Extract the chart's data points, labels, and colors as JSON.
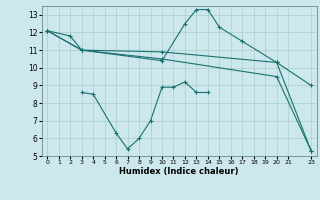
{
  "background_color": "#cce8ec",
  "grid_color": "#aacccc",
  "line_color": "#1a7070",
  "xlabel": "Humidex (Indice chaleur)",
  "xlim": [
    -0.5,
    23.5
  ],
  "ylim": [
    5,
    13.5
  ],
  "yticks": [
    5,
    6,
    7,
    8,
    9,
    10,
    11,
    12,
    13
  ],
  "xticks": [
    0,
    1,
    2,
    3,
    4,
    5,
    6,
    7,
    8,
    9,
    10,
    11,
    12,
    13,
    14,
    15,
    16,
    17,
    18,
    19,
    20,
    21,
    23
  ],
  "lines": [
    {
      "x": [
        0,
        2,
        3,
        10,
        12,
        13,
        14,
        15,
        17,
        20,
        23
      ],
      "y": [
        12.1,
        11.8,
        11.0,
        10.4,
        12.5,
        13.3,
        13.3,
        12.3,
        11.5,
        10.3,
        9.0
      ]
    },
    {
      "x": [
        0,
        3,
        10,
        20,
        23
      ],
      "y": [
        12.1,
        11.0,
        10.9,
        10.3,
        5.3
      ]
    },
    {
      "x": [
        3,
        4,
        6,
        7,
        8,
        9,
        10,
        11,
        12,
        13,
        14
      ],
      "y": [
        8.6,
        8.5,
        6.3,
        5.4,
        6.0,
        7.0,
        8.9,
        8.9,
        9.2,
        8.6,
        8.6
      ]
    },
    {
      "x": [
        0,
        3,
        10,
        20,
        23
      ],
      "y": [
        12.1,
        11.0,
        10.5,
        9.5,
        5.3
      ]
    }
  ]
}
